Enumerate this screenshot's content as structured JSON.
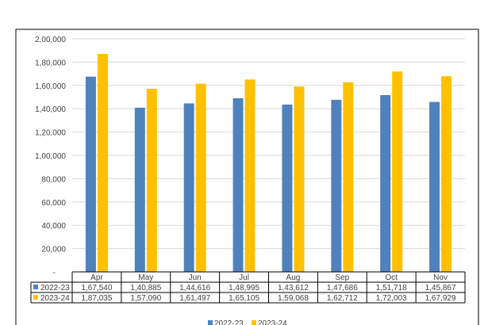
{
  "chart_data": {
    "type": "bar",
    "categories": [
      "Apr",
      "May",
      "Jun",
      "Jul",
      "Aug",
      "Sep",
      "Oct",
      "Nov"
    ],
    "series": [
      {
        "name": "2022-23",
        "values": [
          167540,
          140885,
          144616,
          148995,
          143612,
          147686,
          151718,
          145867
        ],
        "labels": [
          "1,67,540",
          "1,40,885",
          "1,44,616",
          "1,48,995",
          "1,43,612",
          "1,47,686",
          "1,51,718",
          "1,45,867"
        ],
        "color": "#4f81bd"
      },
      {
        "name": "2023-24",
        "values": [
          187035,
          157090,
          161497,
          165105,
          159068,
          162712,
          172003,
          167929
        ],
        "labels": [
          "1,87,035",
          "1,57,090",
          "1,61,497",
          "1,65,105",
          "1,59,068",
          "1,62,712",
          "1,72,003",
          "1,67,929"
        ],
        "color": "#ffc000"
      }
    ],
    "ylim": [
      0,
      200000
    ],
    "yticks": [
      0,
      20000,
      40000,
      60000,
      80000,
      100000,
      120000,
      140000,
      160000,
      180000,
      200000
    ],
    "ytick_labels": [
      "-",
      "20,000",
      "40,000",
      "60,000",
      "80,000",
      "1,00,000",
      "1,20,000",
      "1,40,000",
      "1,60,000",
      "1,80,000",
      "2,00,000"
    ],
    "grid": true,
    "data_table": true,
    "legend_position": "bottom"
  }
}
